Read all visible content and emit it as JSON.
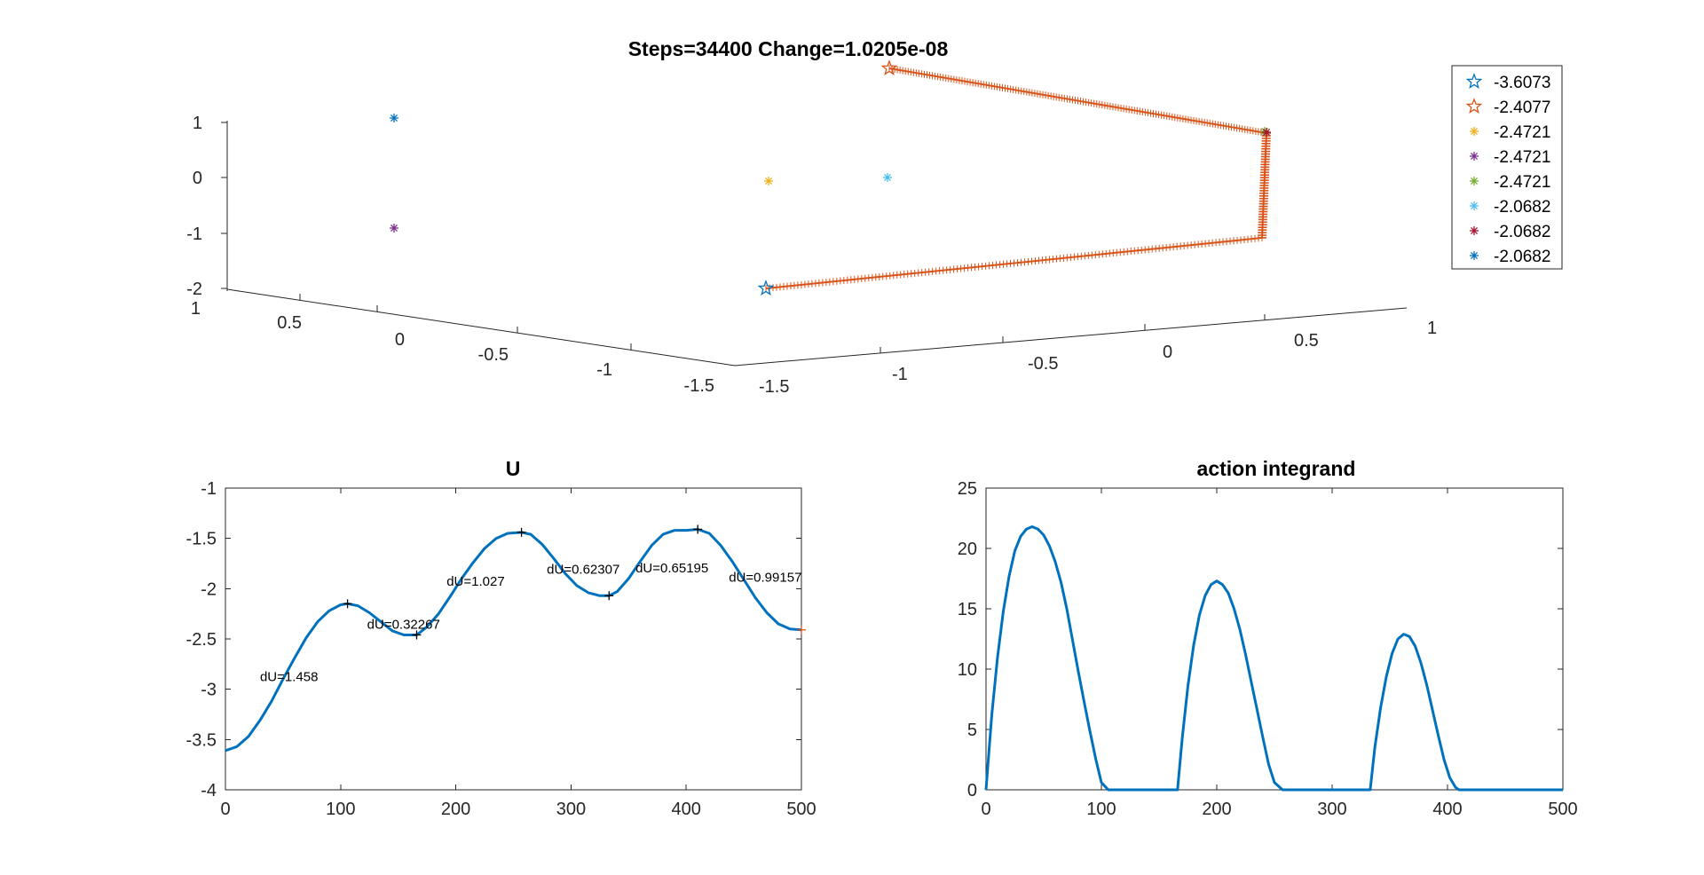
{
  "chart_data": [
    {
      "type": "scatter3d",
      "title": "Steps=34400 Change=1.0205e-08",
      "ticks": {
        "z": [
          "1",
          "0",
          "-1",
          "-2"
        ],
        "x": [
          "1",
          "0.5",
          "0",
          "-0.5",
          "-1",
          "-1.5"
        ],
        "y": [
          "-1.5",
          "-1",
          "-0.5",
          "0",
          "0.5",
          "1"
        ]
      },
      "legend": {
        "position": "top-right",
        "entries": [
          {
            "label": "-3.6073",
            "marker": "star-open",
            "color": "#0072BD"
          },
          {
            "label": "-2.4077",
            "marker": "star-open",
            "color": "#D95319"
          },
          {
            "label": "-2.4721",
            "marker": "asterisk",
            "color": "#EDB120"
          },
          {
            "label": "-2.4721",
            "marker": "asterisk",
            "color": "#7E2F8E"
          },
          {
            "label": "-2.4721",
            "marker": "asterisk",
            "color": "#77AC30"
          },
          {
            "label": "-2.0682",
            "marker": "asterisk",
            "color": "#4DBEEE"
          },
          {
            "label": "-2.0682",
            "marker": "asterisk",
            "color": "#A2142F"
          },
          {
            "label": "-2.0682",
            "marker": "asterisk",
            "color": "#0072BD"
          }
        ]
      },
      "path_color": "#D95319"
    },
    {
      "type": "line",
      "title": "U",
      "xlim": [
        0,
        500
      ],
      "ylim": [
        -4,
        -1
      ],
      "xticks": [
        0,
        100,
        200,
        300,
        400,
        500
      ],
      "yticks": [
        -4,
        -3.5,
        -3,
        -2.5,
        -2,
        -1.5,
        -1
      ],
      "series": [
        {
          "color": "#0072BD",
          "x": [
            0,
            10,
            20,
            30,
            40,
            50,
            60,
            70,
            80,
            90,
            100,
            106,
            115,
            125,
            135,
            145,
            155,
            166,
            175,
            185,
            195,
            205,
            215,
            225,
            235,
            245,
            257,
            265,
            275,
            285,
            295,
            305,
            315,
            325,
            333,
            340,
            350,
            360,
            370,
            380,
            390,
            400,
            410,
            420,
            430,
            440,
            450,
            460,
            470,
            480,
            490,
            500
          ],
          "y": [
            -3.61,
            -3.57,
            -3.47,
            -3.31,
            -3.12,
            -2.9,
            -2.69,
            -2.49,
            -2.33,
            -2.22,
            -2.16,
            -2.15,
            -2.17,
            -2.24,
            -2.33,
            -2.42,
            -2.46,
            -2.46,
            -2.38,
            -2.25,
            -2.08,
            -1.9,
            -1.74,
            -1.6,
            -1.5,
            -1.45,
            -1.44,
            -1.46,
            -1.56,
            -1.7,
            -1.85,
            -1.97,
            -2.04,
            -2.07,
            -2.07,
            -2.03,
            -1.9,
            -1.73,
            -1.57,
            -1.46,
            -1.42,
            -1.42,
            -1.41,
            -1.45,
            -1.57,
            -1.73,
            -1.91,
            -2.09,
            -2.24,
            -2.35,
            -2.4,
            -2.41
          ]
        }
      ],
      "extrema": [
        {
          "x": 106,
          "y": -2.15
        },
        {
          "x": 166,
          "y": -2.46
        },
        {
          "x": 257,
          "y": -1.44
        },
        {
          "x": 333,
          "y": -2.07
        },
        {
          "x": 410,
          "y": -1.41
        }
      ],
      "endpoint": {
        "x": 500,
        "y": -2.41,
        "color": "#D95319"
      },
      "annotations": [
        {
          "text": "dU=1.458",
          "x": 30,
          "y": -2.92
        },
        {
          "text": "dU=0.32267",
          "x": 123,
          "y": -2.4
        },
        {
          "text": "dU=1.027",
          "x": 192,
          "y": -1.97
        },
        {
          "text": "dU=0.62307",
          "x": 279,
          "y": -1.85
        },
        {
          "text": "dU=0.65195",
          "x": 356,
          "y": -1.84
        },
        {
          "text": "dU=0.99157",
          "x": 437,
          "y": -1.93
        }
      ]
    },
    {
      "type": "line",
      "title": "action integrand",
      "xlim": [
        0,
        500
      ],
      "ylim": [
        0,
        25
      ],
      "xticks": [
        0,
        100,
        200,
        300,
        400,
        500
      ],
      "yticks": [
        0,
        5,
        10,
        15,
        20,
        25
      ],
      "series": [
        {
          "color": "#0072BD",
          "x": [
            0,
            5,
            10,
            15,
            20,
            25,
            30,
            35,
            40,
            45,
            50,
            55,
            60,
            65,
            70,
            75,
            80,
            85,
            90,
            95,
            100,
            106,
            120,
            140,
            166,
            170,
            175,
            180,
            185,
            190,
            195,
            200,
            205,
            210,
            215,
            220,
            225,
            230,
            235,
            240,
            245,
            250,
            257,
            280,
            310,
            333,
            337,
            342,
            347,
            352,
            357,
            362,
            367,
            372,
            377,
            382,
            387,
            392,
            397,
            402,
            407,
            410,
            440,
            470,
            500
          ],
          "y": [
            0,
            6.2,
            11.0,
            14.8,
            17.7,
            19.8,
            21.0,
            21.6,
            21.8,
            21.6,
            21.1,
            20.2,
            18.9,
            17.2,
            15.0,
            12.4,
            9.8,
            7.3,
            4.9,
            2.6,
            0.6,
            0,
            0,
            0,
            0,
            4.2,
            8.6,
            12.0,
            14.5,
            16.1,
            17.0,
            17.3,
            17.0,
            16.3,
            15.0,
            13.3,
            11.2,
            8.9,
            6.6,
            4.3,
            2.1,
            0.6,
            0,
            0,
            0,
            0,
            3.5,
            6.8,
            9.4,
            11.3,
            12.5,
            12.9,
            12.7,
            11.9,
            10.5,
            8.7,
            6.6,
            4.5,
            2.5,
            1.0,
            0.2,
            0,
            0,
            0,
            0
          ]
        }
      ]
    }
  ]
}
